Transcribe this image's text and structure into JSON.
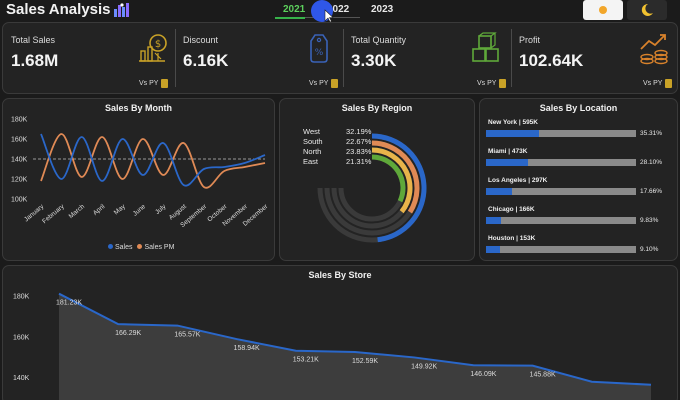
{
  "header": {
    "title": "Sales Analysis",
    "years": [
      "2021",
      "2022",
      "2023"
    ],
    "active_year": "2021"
  },
  "kpis": [
    {
      "label": "Total Sales",
      "value": "1.68M",
      "vs": "Vs PY",
      "icon": "money-bag-chart-icon",
      "color": "#c9a227"
    },
    {
      "label": "Discount",
      "value": "6.16K",
      "vs": "Vs PY",
      "icon": "discount-tag-icon",
      "color": "#3a63b8"
    },
    {
      "label": "Total Quantity",
      "value": "3.30K",
      "vs": "Vs PY",
      "icon": "boxes-icon",
      "color": "#5fa83a"
    },
    {
      "label": "Profit",
      "value": "102.64K",
      "vs": "Vs PY",
      "icon": "coins-growth-icon",
      "color": "#d9822b"
    }
  ],
  "sales_by_month": {
    "title": "Sales By Month",
    "legend": [
      {
        "name": "Sales",
        "color": "#2a67c9"
      },
      {
        "name": "Sales PM",
        "color": "#e08a55"
      }
    ]
  },
  "sales_by_region": {
    "title": "Sales By Region",
    "regions": [
      {
        "name": "West",
        "pct": "32.19%",
        "value": 32.19,
        "color": "#2a67c9"
      },
      {
        "name": "South",
        "pct": "22.67%",
        "value": 22.67,
        "color": "#e08a55"
      },
      {
        "name": "North",
        "pct": "23.83%",
        "value": 23.83,
        "color": "#e8b44a"
      },
      {
        "name": "East",
        "pct": "21.31%",
        "value": 21.31,
        "color": "#5fa83a"
      }
    ]
  },
  "sales_by_location": {
    "title": "Sales By Location",
    "locations": [
      {
        "label": "New York | 595K",
        "pct": "35.31%",
        "value": 35.31
      },
      {
        "label": "Miami | 473K",
        "pct": "28.10%",
        "value": 28.1
      },
      {
        "label": "Los Angeles | 297K",
        "pct": "17.66%",
        "value": 17.66
      },
      {
        "label": "Chicago | 166K",
        "pct": "9.83%",
        "value": 9.83
      },
      {
        "label": "Houston | 153K",
        "pct": "9.10%",
        "value": 9.1
      }
    ]
  },
  "sales_by_store": {
    "title": "Sales By Store"
  },
  "chart_data": [
    {
      "type": "line",
      "title": "Sales By Month",
      "categories": [
        "January",
        "February",
        "March",
        "April",
        "May",
        "June",
        "July",
        "August",
        "September",
        "October",
        "November",
        "December"
      ],
      "ylim": [
        100000,
        180000
      ],
      "yticks": [
        "100K",
        "120K",
        "140K",
        "160K",
        "180K"
      ],
      "reference_line": 140000,
      "series": [
        {
          "name": "Sales",
          "color": "#2a67c9",
          "values": [
            165000,
            120000,
            162000,
            118000,
            160000,
            124000,
            156000,
            114000,
            130000,
            132000,
            136000,
            144000
          ]
        },
        {
          "name": "Sales PM",
          "color": "#e08a55",
          "values": [
            118000,
            165000,
            122000,
            162000,
            120000,
            160000,
            124000,
            156000,
            112000,
            128000,
            132000,
            136000
          ]
        }
      ]
    },
    {
      "type": "pie",
      "title": "Sales By Region",
      "categories": [
        "West",
        "South",
        "North",
        "East"
      ],
      "values": [
        32.19,
        22.67,
        23.83,
        21.31
      ]
    },
    {
      "type": "bar",
      "title": "Sales By Location",
      "categories": [
        "New York",
        "Miami",
        "Los Angeles",
        "Chicago",
        "Houston"
      ],
      "values": [
        595000,
        473000,
        297000,
        166000,
        153000
      ]
    },
    {
      "type": "area",
      "title": "Sales By Store",
      "ylim": [
        130000,
        185000
      ],
      "yticks": [
        "140K",
        "160K",
        "180K"
      ],
      "values": [
        181230,
        166290,
        165570,
        158940,
        153210,
        152590,
        149920,
        146090,
        145880,
        138000,
        136500
      ],
      "data_labels": [
        "181.23K",
        "166.29K",
        "165.57K",
        "158.94K",
        "153.21K",
        "152.59K",
        "149.92K",
        "146.09K",
        "145.88K",
        "",
        ""
      ]
    }
  ]
}
